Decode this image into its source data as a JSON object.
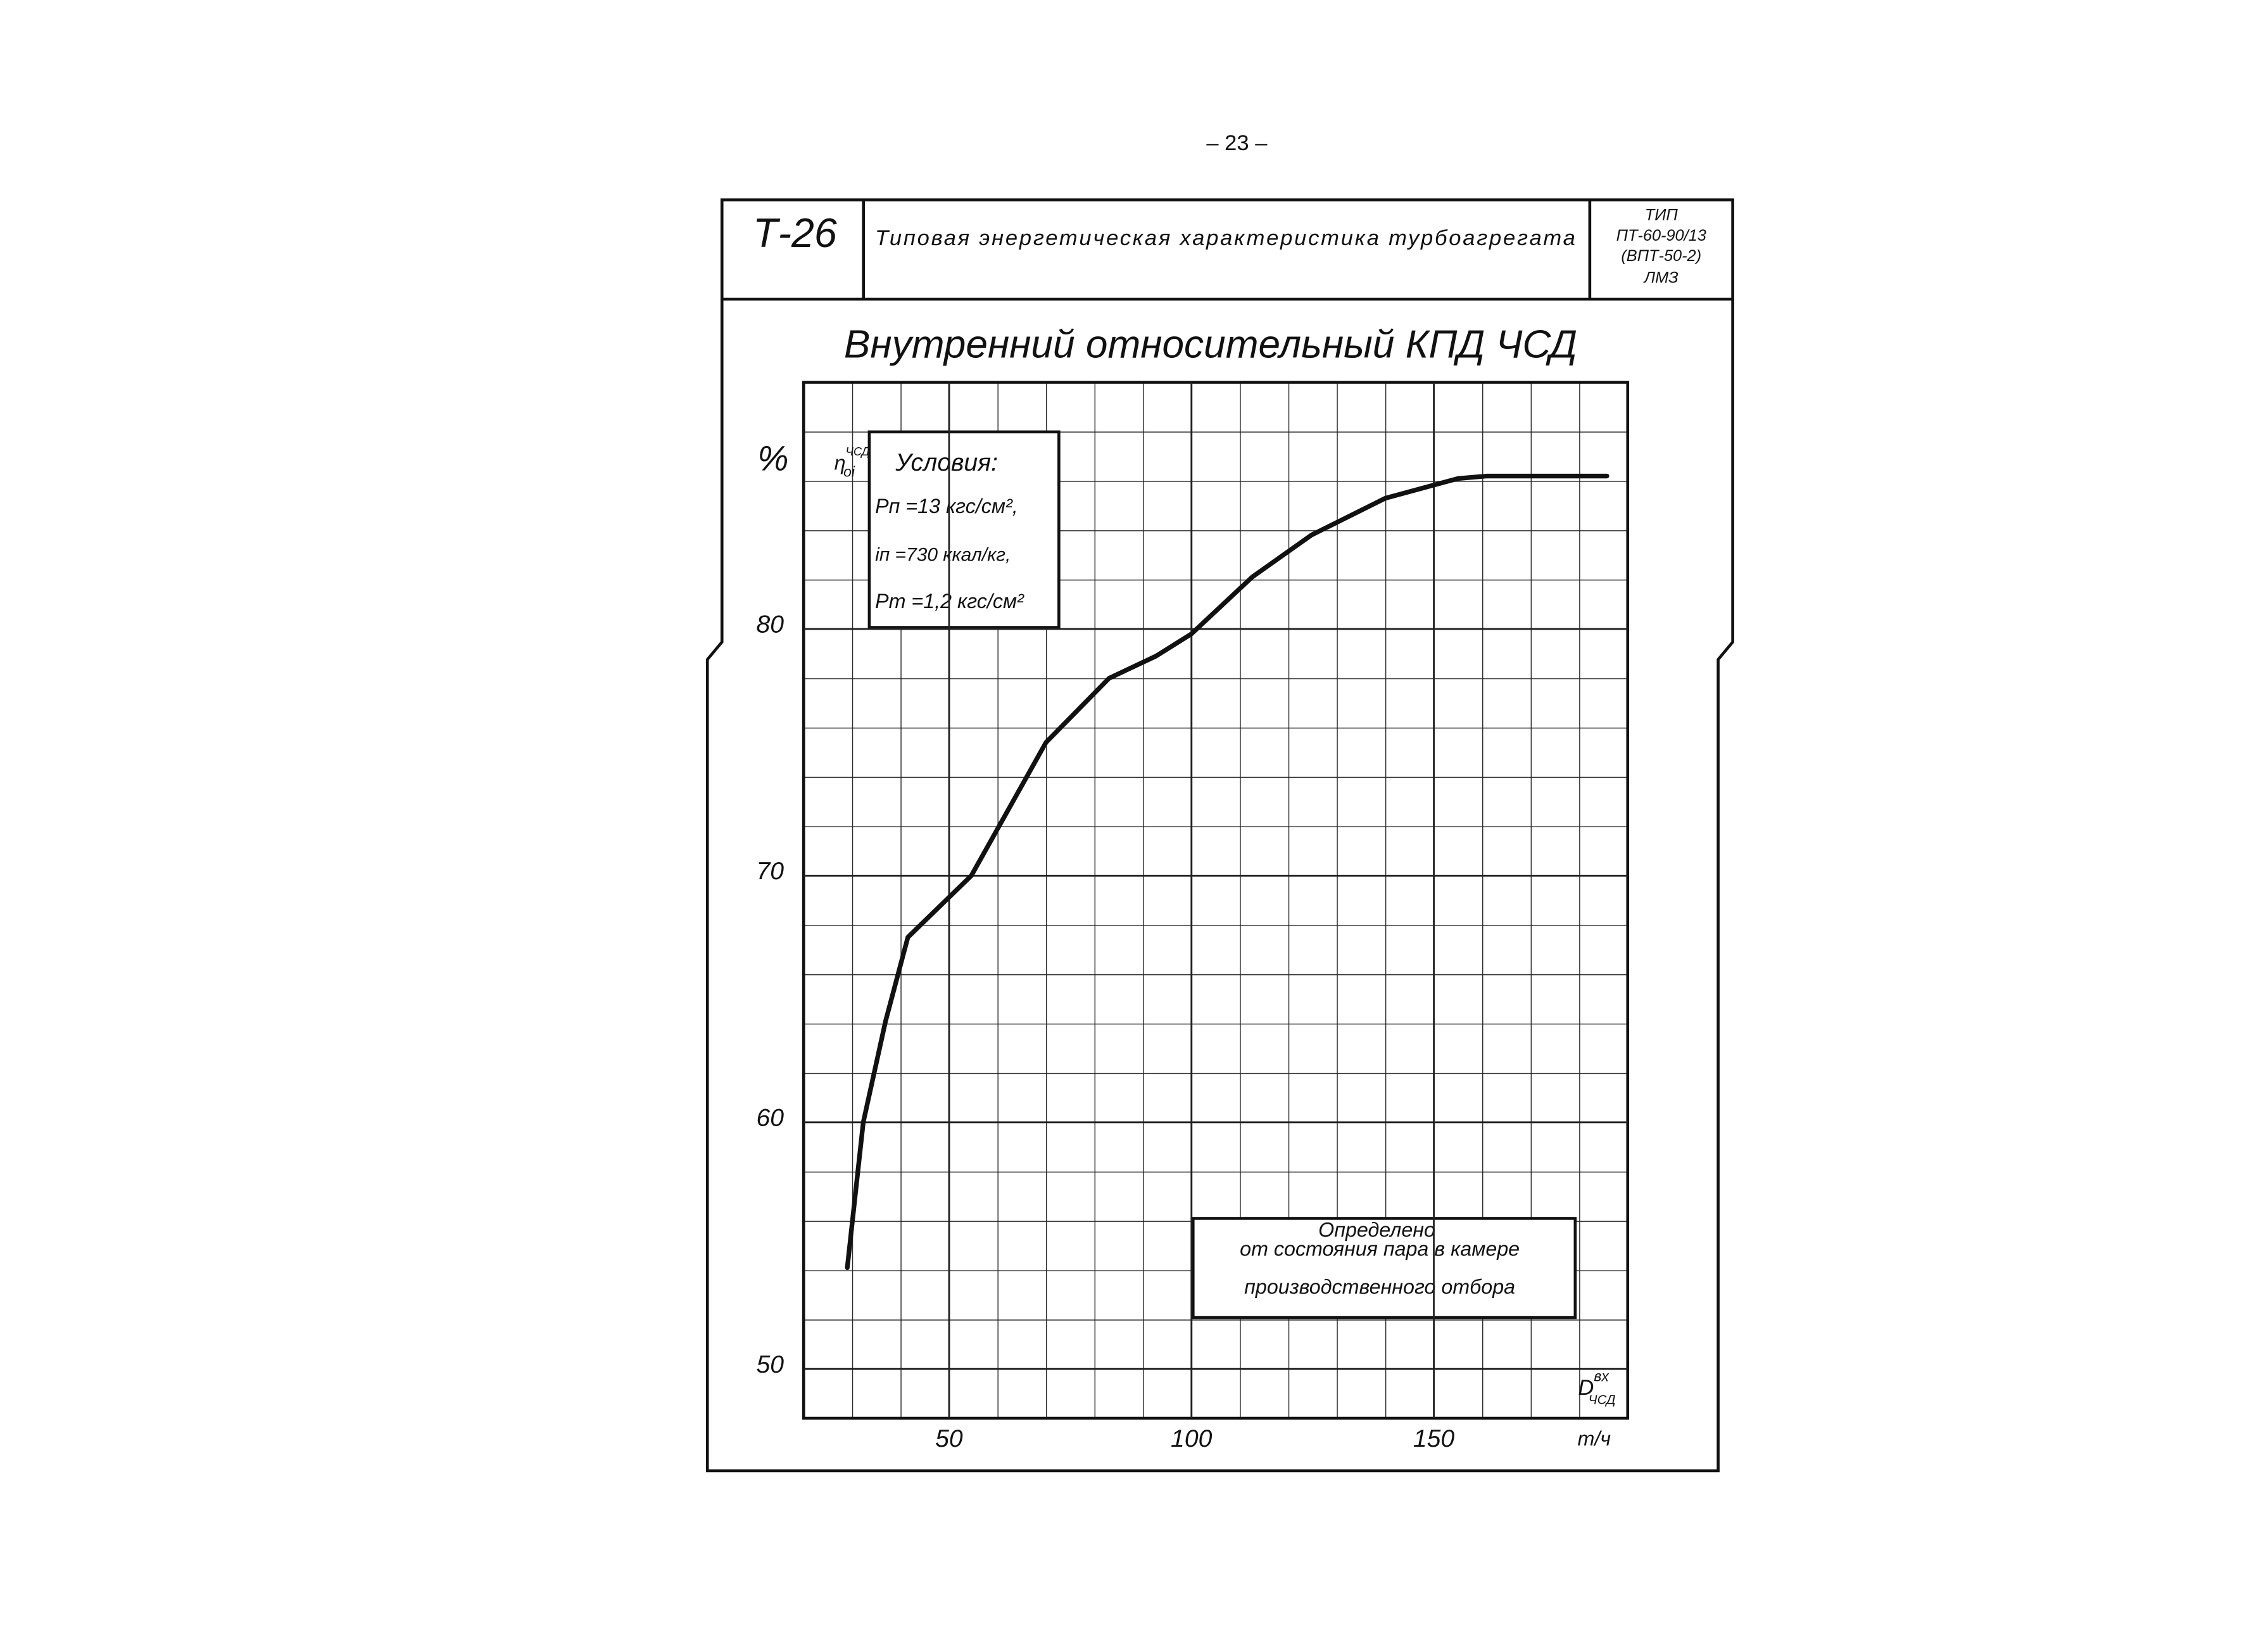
{
  "page_number": "– 23 –",
  "header": {
    "code": "Т-26",
    "title": "Типовая энергетическая характеристика турбоагрегата",
    "type_lines": [
      "ТИП",
      "ПТ-60-90/13",
      "(ВПТ-50-2)",
      "ЛМЗ"
    ]
  },
  "chart_data": {
    "type": "line",
    "title": "Внутренний относительный КПД ЧСД",
    "y_label": "%",
    "y_symbol": "η",
    "y_symbol_sup": "ЧСД",
    "y_symbol_sub": "oi",
    "x_label": "D",
    "x_label_sup": "вх",
    "x_label_sub": "ЧСД",
    "x_unit": "т/ч",
    "conditions": [
      "Условия:",
      "Pп =13 кгс/см²,",
      "iп =730 ккал/кг,",
      "Pт =1,2 кгс/см²"
    ],
    "annotation": [
      "Определено",
      "от состояния пара в камере",
      "производственного отбора"
    ],
    "x": [
      29,
      32.3,
      36.9,
      41.5,
      54.6,
      70,
      83,
      92.7,
      100,
      112.5,
      124.7,
      140,
      155,
      161,
      185.7
    ],
    "series": [
      {
        "color": "#111111",
        "values": [
          54.1,
          60,
          64.1,
          67.5,
          70,
          75.4,
          78,
          78.9,
          79.8,
          82.1,
          83.8,
          85.3,
          86.1,
          86.2,
          86.2
        ]
      }
    ],
    "xlim": [
      20,
      190
    ],
    "ylim": [
      48,
      90
    ],
    "xticks": [
      50,
      100,
      150
    ],
    "yticks": [
      50,
      60,
      70,
      80
    ],
    "grid": true
  }
}
